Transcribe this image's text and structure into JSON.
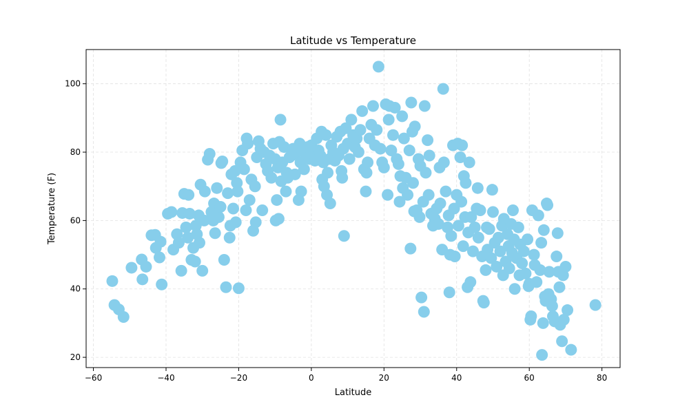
{
  "chart_data": {
    "type": "scatter",
    "title": "Latitude vs Temperature",
    "xlabel": "Latitude",
    "ylabel": "Temperature (F)",
    "xlim": [
      -62,
      85
    ],
    "ylim": [
      17,
      110
    ],
    "xticks": [
      -60,
      -40,
      -20,
      0,
      20,
      40,
      60,
      80
    ],
    "yticks": [
      20,
      40,
      60,
      80,
      100
    ],
    "grid": true,
    "marker_color": "#87CEEB",
    "points": [
      [
        -54.8,
        42.3
      ],
      [
        -54.2,
        35.3
      ],
      [
        -53,
        34
      ],
      [
        -51.7,
        31.8
      ],
      [
        -49.5,
        46.2
      ],
      [
        -46.7,
        48.6
      ],
      [
        -46.5,
        42.8
      ],
      [
        -45.5,
        46.5
      ],
      [
        -44,
        55.7
      ],
      [
        -43,
        55.8
      ],
      [
        -42.8,
        52
      ],
      [
        -41.8,
        49.2
      ],
      [
        -41.5,
        53.8
      ],
      [
        -41.2,
        41.3
      ],
      [
        -39.5,
        62
      ],
      [
        -38.5,
        62.5
      ],
      [
        -38,
        51.5
      ],
      [
        -37,
        56
      ],
      [
        -36.5,
        53.5
      ],
      [
        -35.8,
        45.3
      ],
      [
        -35.5,
        62.2
      ],
      [
        -35,
        67.8
      ],
      [
        -34.5,
        58
      ],
      [
        -34,
        55
      ],
      [
        -33.8,
        67.5
      ],
      [
        -33.5,
        62
      ],
      [
        -33,
        48.5
      ],
      [
        -32.5,
        52
      ],
      [
        -32,
        48
      ],
      [
        -31.8,
        58.5
      ],
      [
        -31.5,
        56
      ],
      [
        -31,
        61.5
      ],
      [
        -30.8,
        53.5
      ],
      [
        -30.5,
        70.5
      ],
      [
        -30,
        45.3
      ],
      [
        -29.5,
        60
      ],
      [
        -29.3,
        68.5
      ],
      [
        -28.5,
        77.8
      ],
      [
        -28,
        79.5
      ],
      [
        -27.5,
        62.5
      ],
      [
        -27,
        60
      ],
      [
        -26.8,
        65
      ],
      [
        -26.5,
        56.3
      ],
      [
        -26,
        69.5
      ],
      [
        -25.5,
        61
      ],
      [
        -25,
        64
      ],
      [
        -24.8,
        76.8
      ],
      [
        -24.5,
        77.3
      ],
      [
        -24,
        48.5
      ],
      [
        -23.5,
        40.5
      ],
      [
        -23,
        68
      ],
      [
        -22.5,
        55
      ],
      [
        -22.3,
        58.5
      ],
      [
        -22,
        73.5
      ],
      [
        -21.5,
        63.5
      ],
      [
        -21,
        74.5
      ],
      [
        -20.8,
        59.5
      ],
      [
        -20.5,
        71
      ],
      [
        -20.3,
        68.5
      ],
      [
        -20,
        40.2
      ],
      [
        -19.5,
        77
      ],
      [
        -19,
        80.5
      ],
      [
        -18.5,
        75
      ],
      [
        -18,
        63
      ],
      [
        -17.8,
        84
      ],
      [
        -17.5,
        82.5
      ],
      [
        -17,
        66
      ],
      [
        -16.5,
        72
      ],
      [
        -16,
        57
      ],
      [
        -15.5,
        70
      ],
      [
        -15.3,
        59.5
      ],
      [
        -15,
        78.5
      ],
      [
        -14.5,
        83.2
      ],
      [
        -14,
        81
      ],
      [
        -13.5,
        63
      ],
      [
        -13,
        80
      ],
      [
        -12.5,
        76.5
      ],
      [
        -12,
        74.5
      ],
      [
        -11.5,
        79
      ],
      [
        -11,
        72.5
      ],
      [
        -10.5,
        82.5
      ],
      [
        -10,
        78
      ],
      [
        -9.8,
        60
      ],
      [
        -9.5,
        66
      ],
      [
        -9.2,
        75.5
      ],
      [
        -9,
        60.5
      ],
      [
        -8.8,
        83
      ],
      [
        -8.5,
        89.5
      ],
      [
        -8.3,
        71.5
      ],
      [
        -8,
        77
      ],
      [
        -7.5,
        81.5
      ],
      [
        -7,
        68.5
      ],
      [
        -6.8,
        74
      ],
      [
        -6.5,
        72.5
      ],
      [
        -6,
        78.5
      ],
      [
        -5.5,
        79
      ],
      [
        -5,
        81
      ],
      [
        -4.5,
        73.5
      ],
      [
        -4,
        80
      ],
      [
        -3.5,
        66
      ],
      [
        -3.2,
        82.5
      ],
      [
        -3,
        77
      ],
      [
        -2.8,
        68.5
      ],
      [
        -2.5,
        80.5
      ],
      [
        -2,
        75
      ],
      [
        -1.5,
        79.5
      ],
      [
        -1,
        81.5
      ],
      [
        -0.5,
        78
      ],
      [
        0,
        82
      ],
      [
        0.5,
        80
      ],
      [
        1,
        77.5
      ],
      [
        1.5,
        84
      ],
      [
        2,
        80.5
      ],
      [
        2.5,
        79
      ],
      [
        2.8,
        86
      ],
      [
        3,
        72
      ],
      [
        3.3,
        77
      ],
      [
        3.5,
        70
      ],
      [
        4,
        85
      ],
      [
        4.3,
        67.5
      ],
      [
        4.5,
        74
      ],
      [
        5,
        78
      ],
      [
        5.2,
        65
      ],
      [
        5.5,
        82
      ],
      [
        6,
        80
      ],
      [
        6.5,
        77.5
      ],
      [
        7,
        84.5
      ],
      [
        7.5,
        79
      ],
      [
        8,
        86
      ],
      [
        8.3,
        74.5
      ],
      [
        8.5,
        72.5
      ],
      [
        8.8,
        81
      ],
      [
        9,
        55.5
      ],
      [
        9.5,
        87
      ],
      [
        10,
        82.5
      ],
      [
        10.5,
        78
      ],
      [
        11,
        89.5
      ],
      [
        11.5,
        85
      ],
      [
        12,
        81.5
      ],
      [
        12.5,
        84
      ],
      [
        13,
        80
      ],
      [
        13.5,
        86.5
      ],
      [
        14,
        92
      ],
      [
        14.5,
        75
      ],
      [
        15,
        68.5
      ],
      [
        15.2,
        74
      ],
      [
        15.5,
        77
      ],
      [
        16,
        84
      ],
      [
        16.5,
        88
      ],
      [
        17,
        93.5
      ],
      [
        17.5,
        82
      ],
      [
        18,
        86.5
      ],
      [
        18.5,
        105
      ],
      [
        19,
        81
      ],
      [
        19.5,
        77
      ],
      [
        20,
        75.5
      ],
      [
        20.5,
        94
      ],
      [
        21,
        67.5
      ],
      [
        21.3,
        89.5
      ],
      [
        21.5,
        93.5
      ],
      [
        22,
        80.5
      ],
      [
        22.5,
        85
      ],
      [
        23,
        93
      ],
      [
        23.5,
        78
      ],
      [
        24,
        76.5
      ],
      [
        24.3,
        65.5
      ],
      [
        24.5,
        73
      ],
      [
        25,
        90.5
      ],
      [
        25.2,
        69.5
      ],
      [
        25.5,
        84
      ],
      [
        26,
        72.5
      ],
      [
        26.5,
        67.5
      ],
      [
        27,
        80.5
      ],
      [
        27.3,
        51.8
      ],
      [
        27.5,
        94.5
      ],
      [
        27.8,
        86
      ],
      [
        28,
        71
      ],
      [
        28.3,
        62.7
      ],
      [
        28.5,
        87.5
      ],
      [
        29,
        63
      ],
      [
        29.5,
        78
      ],
      [
        29.8,
        61
      ],
      [
        30,
        76
      ],
      [
        30.3,
        37.5
      ],
      [
        30.8,
        65.5
      ],
      [
        31,
        33.3
      ],
      [
        31.2,
        93.5
      ],
      [
        31.5,
        74
      ],
      [
        32,
        83.5
      ],
      [
        32.3,
        67.5
      ],
      [
        32.5,
        79
      ],
      [
        33,
        62
      ],
      [
        33.5,
        58.5
      ],
      [
        34,
        60.5
      ],
      [
        34.5,
        63.5
      ],
      [
        35,
        59
      ],
      [
        35.3,
        75.5
      ],
      [
        35.5,
        65
      ],
      [
        36,
        51.5
      ],
      [
        36.3,
        98.5
      ],
      [
        36.5,
        77
      ],
      [
        37,
        68.5
      ],
      [
        37.5,
        58
      ],
      [
        37.8,
        61.5
      ],
      [
        38,
        39
      ],
      [
        38.2,
        50
      ],
      [
        38.5,
        55.5
      ],
      [
        39,
        82
      ],
      [
        39.3,
        63.5
      ],
      [
        39.5,
        49.5
      ],
      [
        40,
        67.5
      ],
      [
        40.3,
        82.5
      ],
      [
        40.5,
        58.5
      ],
      [
        41,
        78.5
      ],
      [
        41.3,
        65.5
      ],
      [
        41.5,
        82
      ],
      [
        41.8,
        52.5
      ],
      [
        42,
        73
      ],
      [
        42.3,
        61
      ],
      [
        42.5,
        71
      ],
      [
        43,
        40.5
      ],
      [
        43.2,
        56.5
      ],
      [
        43.5,
        77
      ],
      [
        43.8,
        42
      ],
      [
        44,
        61
      ],
      [
        44.5,
        51
      ],
      [
        45,
        58
      ],
      [
        45.5,
        63.5
      ],
      [
        45.8,
        69.5
      ],
      [
        46,
        55
      ],
      [
        46.5,
        63
      ],
      [
        47,
        49.5
      ],
      [
        47.3,
        36.5
      ],
      [
        47.5,
        36
      ],
      [
        48,
        45.5
      ],
      [
        48.3,
        58
      ],
      [
        48.5,
        51.5
      ],
      [
        49,
        57.5
      ],
      [
        49.5,
        49
      ],
      [
        49.8,
        69
      ],
      [
        50,
        62.5
      ],
      [
        50.5,
        53.5
      ],
      [
        51,
        46.5
      ],
      [
        51.5,
        55
      ],
      [
        52,
        51
      ],
      [
        52.5,
        58.5
      ],
      [
        52.8,
        44
      ],
      [
        53,
        60.5
      ],
      [
        53.5,
        48
      ],
      [
        54,
        56
      ],
      [
        54.3,
        52.5
      ],
      [
        54.5,
        46
      ],
      [
        55,
        59
      ],
      [
        55.3,
        50.5
      ],
      [
        55.5,
        63
      ],
      [
        55.8,
        54.5
      ],
      [
        56,
        40
      ],
      [
        56.5,
        49
      ],
      [
        57,
        58
      ],
      [
        57.3,
        44
      ],
      [
        57.5,
        53
      ],
      [
        58,
        47.5
      ],
      [
        58.5,
        51
      ],
      [
        59,
        44.5
      ],
      [
        59.5,
        54.5
      ],
      [
        59.8,
        40.8
      ],
      [
        60,
        41.5
      ],
      [
        60.3,
        31
      ],
      [
        60.5,
        32
      ],
      [
        60.8,
        63
      ],
      [
        61.3,
        50
      ],
      [
        61.5,
        47
      ],
      [
        62,
        42
      ],
      [
        62.5,
        61.5
      ],
      [
        63,
        45.5
      ],
      [
        63.3,
        53.5
      ],
      [
        63.5,
        20.7
      ],
      [
        63.8,
        30
      ],
      [
        64,
        57.2
      ],
      [
        64.3,
        37.8
      ],
      [
        64.5,
        36.5
      ],
      [
        64.8,
        65
      ],
      [
        65,
        64.5
      ],
      [
        65.3,
        38.5
      ],
      [
        65.5,
        45
      ],
      [
        66,
        37
      ],
      [
        66.3,
        35
      ],
      [
        66.5,
        32
      ],
      [
        67,
        30.5
      ],
      [
        67.5,
        49.5
      ],
      [
        67.8,
        56.3
      ],
      [
        68,
        45
      ],
      [
        68.3,
        40.5
      ],
      [
        68.5,
        29.5
      ],
      [
        69,
        24.7
      ],
      [
        69.3,
        44
      ],
      [
        69.5,
        31
      ],
      [
        70,
        46.5
      ],
      [
        70.5,
        33.8
      ],
      [
        71.5,
        22.2
      ],
      [
        78.2,
        35.3
      ]
    ]
  }
}
